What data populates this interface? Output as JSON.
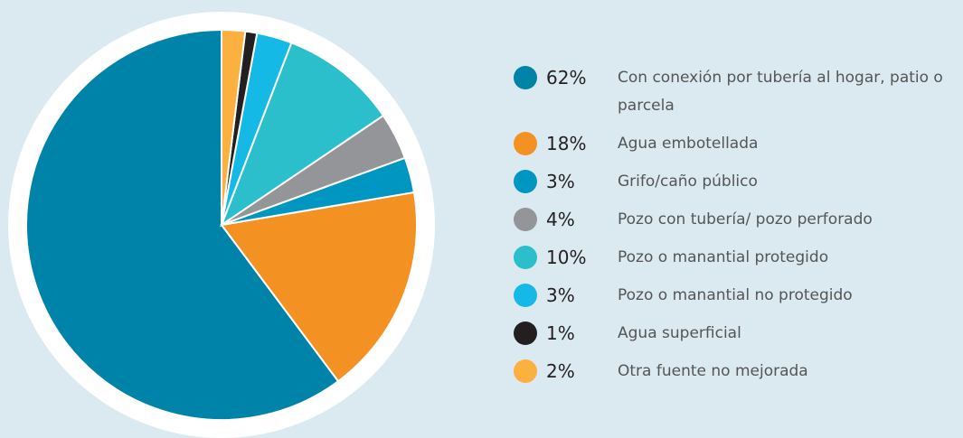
{
  "chart_data": {
    "type": "pie",
    "categories": [
      "Con conexión por tubería al hogar, patio o parcela",
      "Agua embotellada",
      "Grifo/caño público",
      "Pozo con tubería/ pozo perforado",
      "Pozo o manantial protegido",
      "Pozo o manantial no protegido",
      "Agua superficial",
      "Otra fuente no mejorada"
    ],
    "values": [
      62,
      18,
      3,
      4,
      10,
      3,
      1,
      2
    ],
    "value_labels": [
      "62%",
      "18%",
      "3%",
      "4%",
      "10%",
      "3%",
      "1%",
      "2%"
    ],
    "colors": [
      "#0083a9",
      "#f39222",
      "#0096c2",
      "#939598",
      "#2bbfcb",
      "#15b9e6",
      "#231f20",
      "#fbb040"
    ],
    "direction": "counterclockwise"
  }
}
